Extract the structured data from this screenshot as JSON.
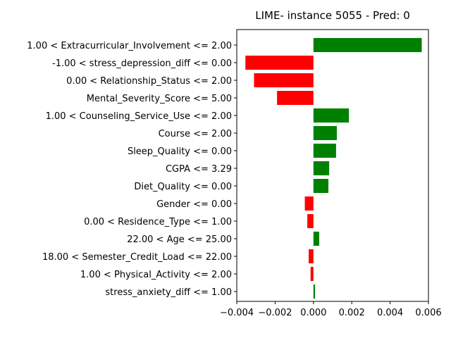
{
  "chart_data": {
    "type": "bar",
    "orientation": "horizontal",
    "title": "LIME- instance 5055 - Pred: 0",
    "xlabel": "",
    "ylabel": "",
    "xlim": [
      -0.004,
      0.006
    ],
    "xticks": [
      -0.004,
      -0.002,
      0.0,
      0.002,
      0.004,
      0.006
    ],
    "xtick_labels": [
      "−0.004",
      "−0.002",
      "0.000",
      "0.002",
      "0.004",
      "0.006"
    ],
    "grid": false,
    "positive_color": "#008000",
    "negative_color": "#ff0000",
    "categories": [
      "1.00 < Extracurricular_Involvement <= 2.00",
      "-1.00 < stress_depression_diff <= 0.00",
      "0.00 < Relationship_Status <= 2.00",
      "Mental_Severity_Score <= 5.00",
      "1.00 < Counseling_Service_Use <= 2.00",
      "Course <= 2.00",
      "Sleep_Quality <= 0.00",
      "CGPA <= 3.29",
      "Diet_Quality <= 0.00",
      "Gender <= 0.00",
      "0.00 < Residence_Type <= 1.00",
      "22.00 < Age <= 25.00",
      "18.00 < Semester_Credit_Load <= 22.00",
      "1.00 < Physical_Activity <= 2.00",
      "stress_anxiety_diff <= 1.00"
    ],
    "values": [
      0.00565,
      -0.00355,
      -0.0031,
      -0.0019,
      0.00185,
      0.00122,
      0.00118,
      0.00082,
      0.00078,
      -0.00045,
      -0.00032,
      0.0003,
      -0.00025,
      -0.00015,
      8e-05
    ]
  }
}
